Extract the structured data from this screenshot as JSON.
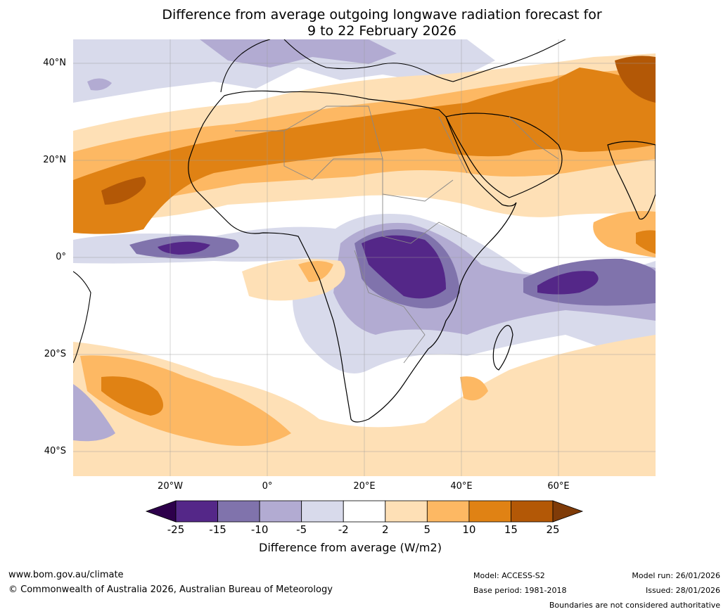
{
  "title": {
    "line1": "Difference from average outgoing longwave radiation forecast for",
    "line2": "9 to 22 February 2026"
  },
  "axes": {
    "lat_labels": [
      "40°N",
      "20°N",
      "0°",
      "20°S",
      "40°S"
    ],
    "lon_labels": [
      "20°W",
      "0°",
      "20°E",
      "40°E",
      "60°E"
    ]
  },
  "colorbar": {
    "ticks": [
      "-25",
      "-15",
      "-10",
      "-5",
      "-2",
      "2",
      "5",
      "10",
      "15",
      "25"
    ],
    "colors": {
      "below": "#2d004b",
      "bands": [
        "#542788",
        "#8073ac",
        "#b2abd2",
        "#d8daeb",
        "#ffffff",
        "#fee0b6",
        "#fdb863",
        "#e08214",
        "#b35806"
      ],
      "above": "#7f3b08"
    },
    "label": "Difference from average (W/m2)"
  },
  "footer": {
    "url": "www.bom.gov.au/climate",
    "copyright": "© Commonwealth of Australia 2026, Australian Bureau of Meteorology",
    "model": "Model: ACCESS-S2",
    "base_period": "Base period: 1981-2018",
    "model_run": "Model run: 26/01/2026",
    "issued": "Issued: 28/01/2026",
    "disclaimer": "Boundaries are not considered authoritative"
  }
}
